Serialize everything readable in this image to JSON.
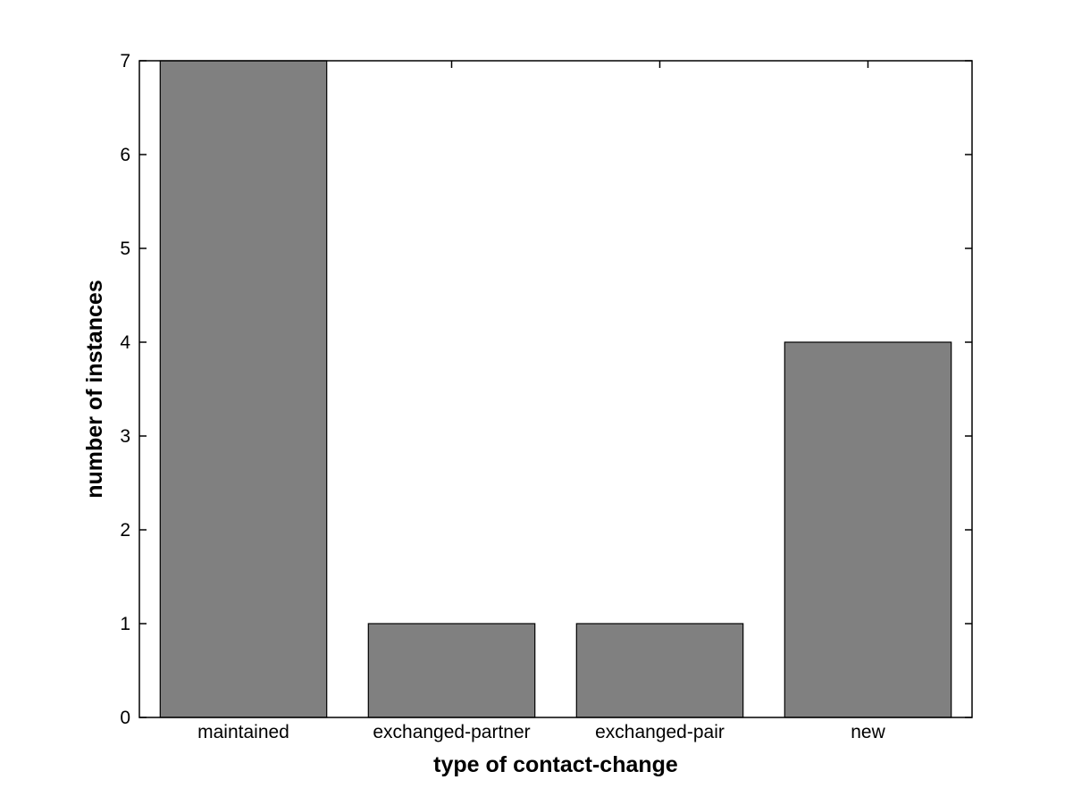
{
  "chart_data": {
    "type": "bar",
    "title": "",
    "categories": [
      "maintained",
      "exchanged-partner",
      "exchanged-pair",
      "new"
    ],
    "values": [
      7,
      1,
      1,
      4
    ],
    "xlabel": "type of contact-change",
    "ylabel": "number of instances",
    "ylim": [
      0,
      7
    ],
    "yticks": [
      0,
      1,
      2,
      3,
      4,
      5,
      6,
      7
    ],
    "ytick_labels": [
      "0",
      "1",
      "2",
      "3",
      "4",
      "5",
      "6",
      "7"
    ],
    "grid": false,
    "legend": null,
    "bar_width_fraction": 0.8,
    "colors": {
      "bar_fill": "#808080",
      "bar_edge": "#000000",
      "axis": "#000000",
      "background": "#ffffff",
      "text": "#000000"
    }
  }
}
